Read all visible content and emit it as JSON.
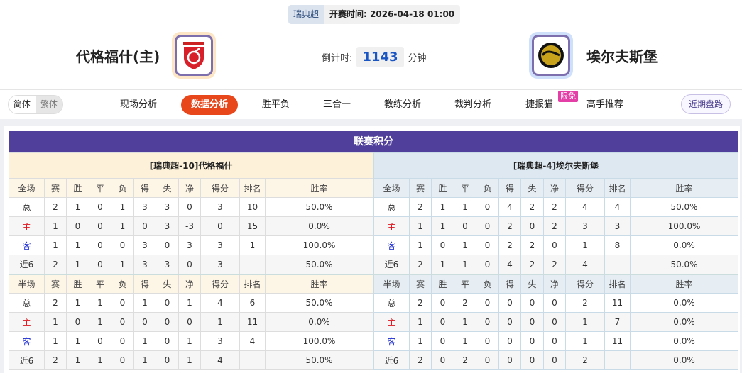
{
  "match": {
    "league": "瑞典超",
    "kickoff_label": "开赛时间:",
    "kickoff": "2026-04-18 01:00",
    "home_team": "代格福什(主)",
    "away_team": "埃尔夫斯堡",
    "countdown_label": "倒计时:",
    "countdown_value": "1143",
    "countdown_unit": "分钟"
  },
  "nav": {
    "lang": [
      "简体",
      "繁体"
    ],
    "tabs": [
      "现场分析",
      "数据分析",
      "胜平负",
      "三合一",
      "教练分析",
      "裁判分析",
      "捷报猫",
      "高手推荐"
    ],
    "active": "数据分析",
    "badge": "限免",
    "recent": "近期盘路"
  },
  "colors": {
    "accent": "#e8461b",
    "title_bar": "#51409b",
    "home": "#e0141e",
    "away": "#1525d0"
  },
  "standings": {
    "title": "联赛积分",
    "columns_full": [
      "全场",
      "赛",
      "胜",
      "平",
      "负",
      "得",
      "失",
      "净",
      "得分",
      "排名",
      "胜率"
    ],
    "columns_half": [
      "半场",
      "赛",
      "胜",
      "平",
      "负",
      "得",
      "失",
      "净",
      "得分",
      "排名",
      "胜率"
    ],
    "home": {
      "header": "[瑞典超-10]代格福什",
      "full": [
        [
          "总",
          "2",
          "1",
          "0",
          "1",
          "3",
          "3",
          "0",
          "3",
          "10",
          "50.0%"
        ],
        [
          "主",
          "1",
          "0",
          "0",
          "1",
          "0",
          "3",
          "-3",
          "0",
          "15",
          "0.0%"
        ],
        [
          "客",
          "1",
          "1",
          "0",
          "0",
          "3",
          "0",
          "3",
          "3",
          "1",
          "100.0%"
        ],
        [
          "近6",
          "2",
          "1",
          "0",
          "1",
          "3",
          "3",
          "0",
          "3",
          "",
          "50.0%"
        ]
      ],
      "half": [
        [
          "总",
          "2",
          "1",
          "1",
          "0",
          "1",
          "0",
          "1",
          "4",
          "6",
          "50.0%"
        ],
        [
          "主",
          "1",
          "0",
          "1",
          "0",
          "0",
          "0",
          "0",
          "1",
          "11",
          "0.0%"
        ],
        [
          "客",
          "1",
          "1",
          "0",
          "0",
          "1",
          "0",
          "1",
          "3",
          "4",
          "100.0%"
        ],
        [
          "近6",
          "2",
          "1",
          "1",
          "0",
          "1",
          "0",
          "1",
          "4",
          "",
          "50.0%"
        ]
      ]
    },
    "away": {
      "header": "[瑞典超-4]埃尔夫斯堡",
      "full": [
        [
          "总",
          "2",
          "1",
          "1",
          "0",
          "4",
          "2",
          "2",
          "4",
          "4",
          "50.0%"
        ],
        [
          "主",
          "1",
          "1",
          "0",
          "0",
          "2",
          "0",
          "2",
          "3",
          "3",
          "100.0%"
        ],
        [
          "客",
          "1",
          "0",
          "1",
          "0",
          "2",
          "2",
          "0",
          "1",
          "8",
          "0.0%"
        ],
        [
          "近6",
          "2",
          "1",
          "1",
          "0",
          "4",
          "2",
          "2",
          "4",
          "",
          "50.0%"
        ]
      ],
      "half": [
        [
          "总",
          "2",
          "0",
          "2",
          "0",
          "0",
          "0",
          "0",
          "2",
          "11",
          "0.0%"
        ],
        [
          "主",
          "1",
          "0",
          "1",
          "0",
          "0",
          "0",
          "0",
          "1",
          "7",
          "0.0%"
        ],
        [
          "客",
          "1",
          "0",
          "1",
          "0",
          "0",
          "0",
          "0",
          "1",
          "11",
          "0.0%"
        ],
        [
          "近6",
          "2",
          "0",
          "2",
          "0",
          "0",
          "0",
          "0",
          "2",
          "",
          "0.0%"
        ]
      ]
    }
  }
}
